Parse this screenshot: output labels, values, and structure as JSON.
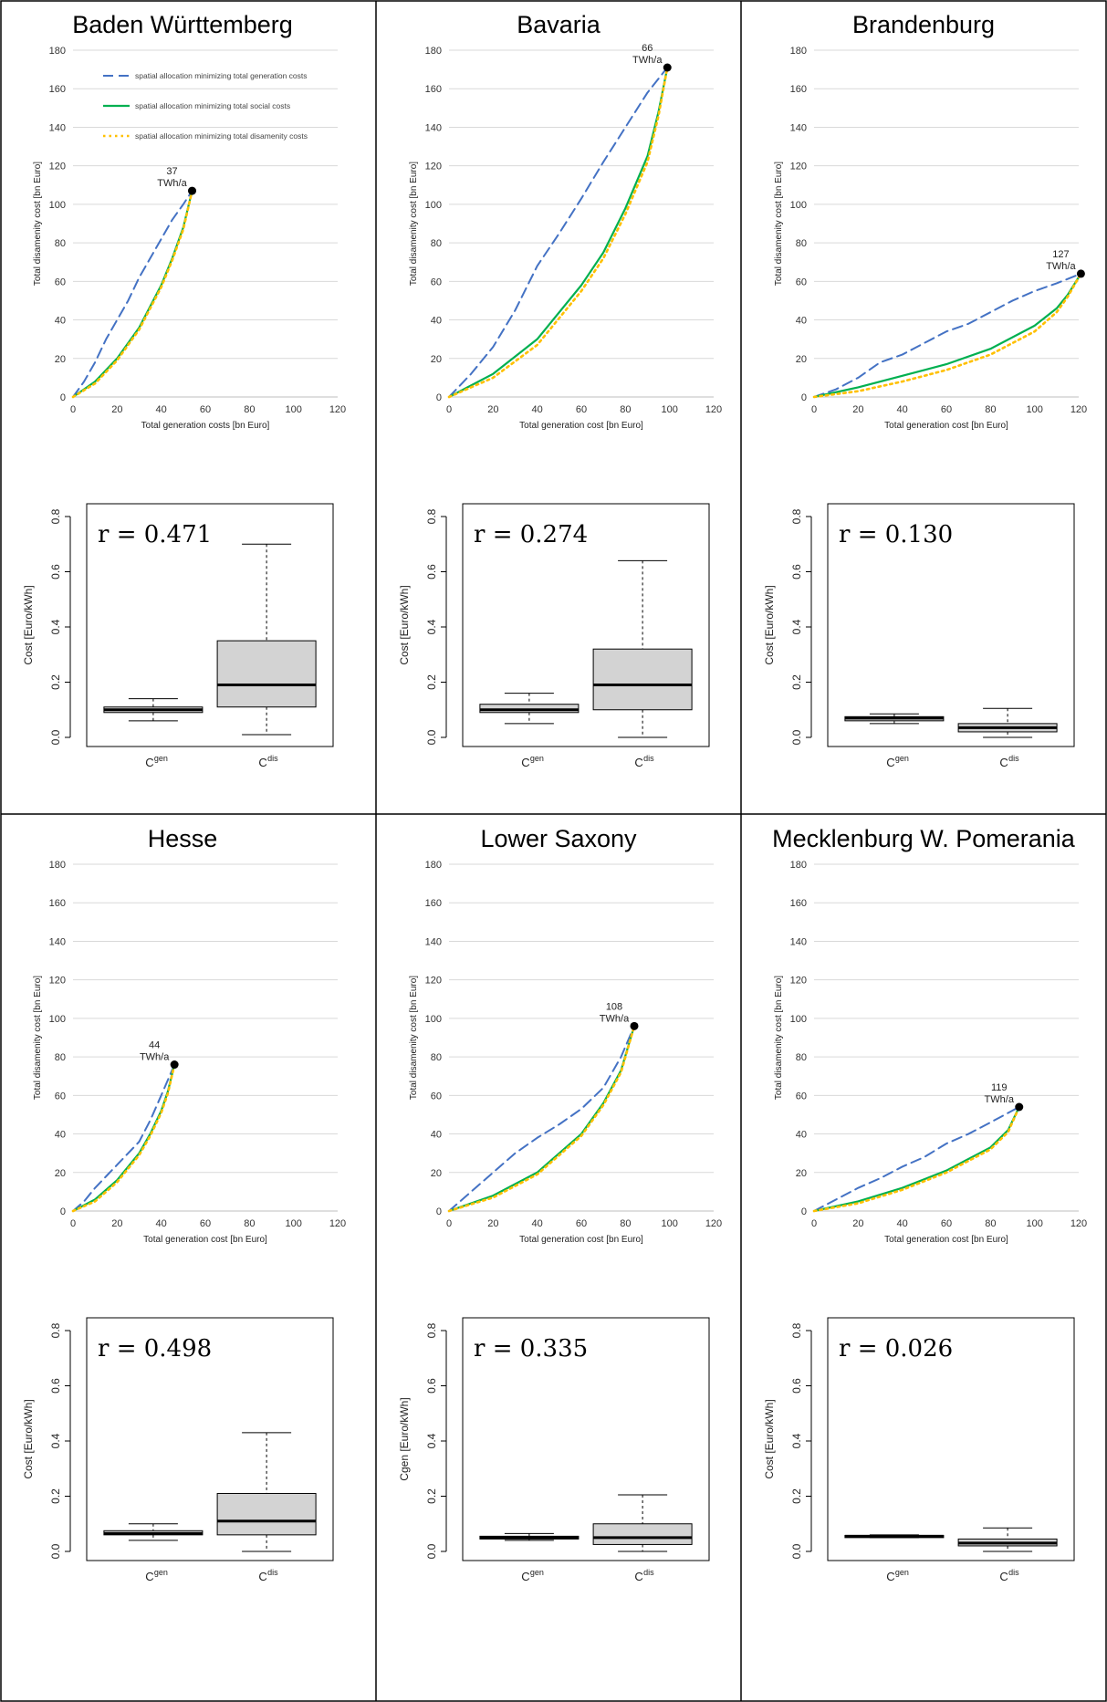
{
  "figure": {
    "legend": [
      {
        "label": "spatial allocation minimizing total generation costs",
        "color": "#4472C4",
        "style": "dashed"
      },
      {
        "label": "spatial allocation minimizing total social costs",
        "color": "#00B050",
        "style": "solid"
      },
      {
        "label": "spatial allocation minimizing total disamenity costs",
        "color": "#FFC000",
        "style": "dotted"
      }
    ],
    "colors": {
      "generation": "#4472C4",
      "social": "#00B050",
      "disamenity": "#FFC000",
      "box_fill": "#D3D3D3"
    }
  },
  "chart_data": [
    {
      "region": "Baden Württemberg",
      "type": "line",
      "xlabel": "Total generation costs [bn Euro]",
      "ylabel": "Total disamenity cost [bn Euro]",
      "xlim": [
        0,
        120
      ],
      "ylim": [
        0,
        180
      ],
      "xticks": [
        "0",
        "20",
        "40",
        "60",
        "80",
        "100",
        "120"
      ],
      "yticks": [
        "0",
        "20",
        "40",
        "60",
        "80",
        "100",
        "120",
        "140",
        "160",
        "180"
      ],
      "grid": true,
      "legend_shown": true,
      "endpoint": {
        "x": 54,
        "y": 107
      },
      "endpoint_label": [
        "37",
        "TWh/a"
      ],
      "series": [
        {
          "name": "spatial allocation minimizing total generation costs",
          "x": [
            0,
            5,
            10,
            15,
            20,
            25,
            30,
            35,
            40,
            45,
            50,
            54
          ],
          "y": [
            0,
            8,
            18,
            30,
            40,
            50,
            62,
            72,
            82,
            92,
            100,
            107
          ]
        },
        {
          "name": "spatial allocation minimizing total social costs",
          "x": [
            0,
            10,
            20,
            30,
            40,
            45,
            50,
            54
          ],
          "y": [
            0,
            8,
            20,
            36,
            58,
            72,
            88,
            107
          ]
        },
        {
          "name": "spatial allocation minimizing total disamenity costs",
          "x": [
            0,
            10,
            20,
            30,
            40,
            45,
            50,
            54
          ],
          "y": [
            0,
            7,
            19,
            35,
            57,
            71,
            87,
            107
          ]
        }
      ],
      "box": {
        "r_label": "r = 0.471",
        "ylabel": "Cost [Euro/kWh]",
        "ylim": [
          0,
          0.8
        ],
        "yticks": [
          "0.0",
          "0.2",
          "0.4",
          "0.6",
          "0.8"
        ],
        "categories": [
          {
            "base": "C",
            "sup": "gen"
          },
          {
            "base": "C",
            "sup": "dis"
          }
        ],
        "boxes": [
          {
            "min": 0.06,
            "q1": 0.09,
            "median": 0.1,
            "q3": 0.11,
            "max": 0.14
          },
          {
            "min": 0.01,
            "q1": 0.11,
            "median": 0.19,
            "q3": 0.35,
            "max": 0.7
          }
        ]
      }
    },
    {
      "region": "Bavaria",
      "type": "line",
      "xlabel": "Total generation cost [bn Euro]",
      "ylabel": "Total disamenity cost [bn Euro]",
      "xlim": [
        0,
        120
      ],
      "ylim": [
        0,
        180
      ],
      "xticks": [
        "0",
        "20",
        "40",
        "60",
        "80",
        "100",
        "120"
      ],
      "yticks": [
        "0",
        "20",
        "40",
        "60",
        "80",
        "100",
        "120",
        "140",
        "160",
        "180"
      ],
      "grid": true,
      "legend_shown": false,
      "endpoint": {
        "x": 99,
        "y": 171
      },
      "endpoint_label": [
        "66",
        "TWh/a"
      ],
      "series": [
        {
          "name": "spatial allocation minimizing total generation costs",
          "x": [
            0,
            10,
            20,
            30,
            40,
            50,
            60,
            70,
            80,
            90,
            99
          ],
          "y": [
            0,
            12,
            26,
            45,
            68,
            85,
            103,
            122,
            140,
            158,
            171
          ]
        },
        {
          "name": "spatial allocation minimizing total social costs",
          "x": [
            0,
            20,
            40,
            60,
            70,
            80,
            90,
            95,
            99
          ],
          "y": [
            0,
            12,
            30,
            58,
            75,
            98,
            125,
            148,
            171
          ]
        },
        {
          "name": "spatial allocation minimizing total disamenity costs",
          "x": [
            0,
            20,
            40,
            60,
            70,
            80,
            90,
            95,
            99
          ],
          "y": [
            0,
            10,
            27,
            55,
            72,
            95,
            122,
            146,
            171
          ]
        }
      ],
      "box": {
        "r_label": "r = 0.274",
        "ylabel": "Cost [Euro/kWh]",
        "ylim": [
          0,
          0.8
        ],
        "yticks": [
          "0.0",
          "0.2",
          "0.4",
          "0.6",
          "0.8"
        ],
        "categories": [
          {
            "base": "C",
            "sup": "gen"
          },
          {
            "base": "C",
            "sup": "dis"
          }
        ],
        "boxes": [
          {
            "min": 0.05,
            "q1": 0.09,
            "median": 0.1,
            "q3": 0.12,
            "max": 0.16
          },
          {
            "min": 0.0,
            "q1": 0.1,
            "median": 0.19,
            "q3": 0.32,
            "max": 0.64
          }
        ]
      }
    },
    {
      "region": "Brandenburg",
      "type": "line",
      "xlabel": "Total generation cost [bn Euro]",
      "ylabel": "Total disamenity cost [bn Euro]",
      "xlim": [
        0,
        120
      ],
      "ylim": [
        0,
        180
      ],
      "xticks": [
        "0",
        "20",
        "40",
        "60",
        "80",
        "100",
        "120"
      ],
      "yticks": [
        "0",
        "20",
        "40",
        "60",
        "80",
        "100",
        "120",
        "140",
        "160",
        "180"
      ],
      "grid": true,
      "legend_shown": false,
      "endpoint": {
        "x": 121,
        "y": 64
      },
      "endpoint_label": [
        "127",
        "TWh/a"
      ],
      "series": [
        {
          "name": "spatial allocation minimizing total generation costs",
          "x": [
            0,
            10,
            20,
            30,
            40,
            50,
            60,
            70,
            80,
            90,
            100,
            110,
            121
          ],
          "y": [
            0,
            4,
            10,
            18,
            22,
            28,
            34,
            38,
            44,
            50,
            55,
            59,
            64
          ]
        },
        {
          "name": "spatial allocation minimizing total social costs",
          "x": [
            0,
            20,
            40,
            60,
            80,
            100,
            110,
            115,
            121
          ],
          "y": [
            0,
            5,
            11,
            17,
            25,
            37,
            46,
            53,
            64
          ]
        },
        {
          "name": "spatial allocation minimizing total disamenity costs",
          "x": [
            0,
            20,
            40,
            60,
            80,
            100,
            110,
            115,
            121
          ],
          "y": [
            0,
            3,
            8,
            14,
            22,
            34,
            44,
            52,
            64
          ]
        }
      ],
      "box": {
        "r_label": "r = 0.130",
        "ylabel": "Cost [Euro/kWh]",
        "ylim": [
          0,
          0.8
        ],
        "yticks": [
          "0.0",
          "0.2",
          "0.4",
          "0.6",
          "0.8"
        ],
        "categories": [
          {
            "base": "C",
            "sup": "gen"
          },
          {
            "base": "C",
            "sup": "dis"
          }
        ],
        "boxes": [
          {
            "min": 0.05,
            "q1": 0.06,
            "median": 0.07,
            "q3": 0.075,
            "max": 0.085
          },
          {
            "min": 0.0,
            "q1": 0.02,
            "median": 0.035,
            "q3": 0.05,
            "max": 0.105
          }
        ]
      }
    },
    {
      "region": "Hesse",
      "type": "line",
      "xlabel": "Total generation cost [bn Euro]",
      "ylabel": "Total disamenity cost [bn Euro]",
      "xlim": [
        0,
        120
      ],
      "ylim": [
        0,
        180
      ],
      "xticks": [
        "0",
        "20",
        "40",
        "60",
        "80",
        "100",
        "120"
      ],
      "yticks": [
        "0",
        "20",
        "40",
        "60",
        "80",
        "100",
        "120",
        "140",
        "160",
        "180"
      ],
      "grid": true,
      "legend_shown": false,
      "endpoint": {
        "x": 46,
        "y": 76
      },
      "endpoint_label": [
        "44",
        "TWh/a"
      ],
      "series": [
        {
          "name": "spatial allocation minimizing total generation costs",
          "x": [
            0,
            5,
            10,
            15,
            20,
            25,
            30,
            35,
            40,
            46
          ],
          "y": [
            0,
            5,
            12,
            18,
            24,
            30,
            36,
            47,
            60,
            76
          ]
        },
        {
          "name": "spatial allocation minimizing total social costs",
          "x": [
            0,
            10,
            20,
            30,
            35,
            40,
            43,
            46
          ],
          "y": [
            0,
            6,
            16,
            30,
            40,
            52,
            62,
            76
          ]
        },
        {
          "name": "spatial allocation minimizing total disamenity costs",
          "x": [
            0,
            10,
            20,
            30,
            35,
            40,
            43,
            46
          ],
          "y": [
            0,
            5,
            15,
            29,
            39,
            51,
            61,
            76
          ]
        }
      ],
      "box": {
        "r_label": "r = 0.498",
        "ylabel": "Cost [Euro/kWh]",
        "ylim": [
          0,
          0.8
        ],
        "yticks": [
          "0.0",
          "0.2",
          "0.4",
          "0.6",
          "0.8"
        ],
        "categories": [
          {
            "base": "C",
            "sup": "gen"
          },
          {
            "base": "C",
            "sup": "dis"
          }
        ],
        "boxes": [
          {
            "min": 0.04,
            "q1": 0.06,
            "median": 0.065,
            "q3": 0.075,
            "max": 0.1
          },
          {
            "min": 0.0,
            "q1": 0.06,
            "median": 0.11,
            "q3": 0.21,
            "max": 0.43
          }
        ]
      }
    },
    {
      "region": "Lower Saxony",
      "type": "line",
      "xlabel": "Total generation cost [bn Euro]",
      "ylabel": "Total disamenity cost [bn Euro]",
      "xlim": [
        0,
        120
      ],
      "ylim": [
        0,
        180
      ],
      "xticks": [
        "0",
        "20",
        "40",
        "60",
        "80",
        "100",
        "120"
      ],
      "yticks": [
        "0",
        "20",
        "40",
        "60",
        "80",
        "100",
        "120",
        "140",
        "160",
        "180"
      ],
      "grid": true,
      "legend_shown": false,
      "endpoint": {
        "x": 84,
        "y": 96
      },
      "endpoint_label": [
        "108",
        "TWh/a"
      ],
      "series": [
        {
          "name": "spatial allocation minimizing total generation costs",
          "x": [
            0,
            10,
            20,
            30,
            40,
            50,
            60,
            70,
            78,
            84
          ],
          "y": [
            0,
            10,
            20,
            30,
            38,
            45,
            53,
            64,
            80,
            96
          ]
        },
        {
          "name": "spatial allocation minimizing total social costs",
          "x": [
            0,
            20,
            40,
            60,
            70,
            78,
            84
          ],
          "y": [
            0,
            8,
            20,
            40,
            56,
            73,
            96
          ]
        },
        {
          "name": "spatial allocation minimizing total disamenity costs",
          "x": [
            0,
            20,
            40,
            60,
            70,
            78,
            84
          ],
          "y": [
            0,
            7,
            19,
            39,
            55,
            72,
            96
          ]
        }
      ],
      "box": {
        "r_label": "r = 0.335",
        "ylabel": "Cgen [Euro/kWh]",
        "ylim": [
          0,
          0.8
        ],
        "yticks": [
          "0.0",
          "0.2",
          "0.4",
          "0.6",
          "0.8"
        ],
        "categories": [
          {
            "base": "C",
            "sup": "gen"
          },
          {
            "base": "C",
            "sup": "dis"
          }
        ],
        "boxes": [
          {
            "min": 0.04,
            "q1": 0.045,
            "median": 0.05,
            "q3": 0.055,
            "max": 0.065
          },
          {
            "min": 0.0,
            "q1": 0.025,
            "median": 0.05,
            "q3": 0.1,
            "max": 0.205
          }
        ]
      }
    },
    {
      "region": "Mecklenburg W. Pomerania",
      "type": "line",
      "xlabel": "Total generation cost [bn Euro]",
      "ylabel": "Total disamenity cost [bn Euro]",
      "xlim": [
        0,
        120
      ],
      "ylim": [
        0,
        180
      ],
      "xticks": [
        "0",
        "20",
        "40",
        "60",
        "80",
        "100",
        "120"
      ],
      "yticks": [
        "0",
        "20",
        "40",
        "60",
        "80",
        "100",
        "120",
        "140",
        "160",
        "180"
      ],
      "grid": true,
      "legend_shown": false,
      "endpoint": {
        "x": 93,
        "y": 54
      },
      "endpoint_label": [
        "119",
        "TWh/a"
      ],
      "series": [
        {
          "name": "spatial allocation minimizing total generation costs",
          "x": [
            0,
            10,
            20,
            30,
            40,
            50,
            60,
            70,
            80,
            93
          ],
          "y": [
            0,
            6,
            12,
            17,
            23,
            28,
            35,
            40,
            46,
            54
          ]
        },
        {
          "name": "spatial allocation minimizing total social costs",
          "x": [
            0,
            20,
            40,
            60,
            80,
            88,
            93
          ],
          "y": [
            0,
            5,
            12,
            21,
            33,
            42,
            54
          ]
        },
        {
          "name": "spatial allocation minimizing total disamenity costs",
          "x": [
            0,
            20,
            40,
            60,
            80,
            88,
            93
          ],
          "y": [
            0,
            4,
            11,
            20,
            32,
            41,
            54
          ]
        }
      ],
      "box": {
        "r_label": "r = 0.026",
        "ylabel": "Cost [Euro/kWh]",
        "ylim": [
          0,
          0.8
        ],
        "yticks": [
          "0.0",
          "0.2",
          "0.4",
          "0.6",
          "0.8"
        ],
        "categories": [
          {
            "base": "C",
            "sup": "gen"
          },
          {
            "base": "C",
            "sup": "dis"
          }
        ],
        "boxes": [
          {
            "min": 0.05,
            "q1": 0.05,
            "median": 0.055,
            "q3": 0.058,
            "max": 0.06
          },
          {
            "min": 0.0,
            "q1": 0.02,
            "median": 0.03,
            "q3": 0.045,
            "max": 0.085
          }
        ]
      }
    }
  ]
}
